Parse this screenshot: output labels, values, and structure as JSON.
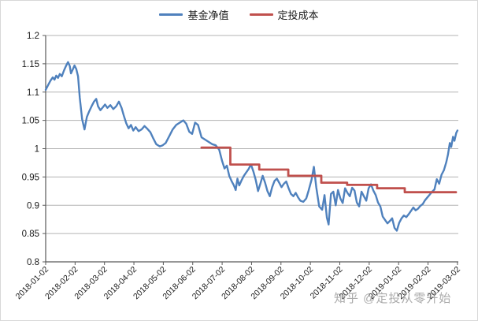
{
  "watermark": {
    "text": "知乎 @定投从零开始"
  },
  "chart_data": {
    "type": "line",
    "title": "",
    "xlabel": "",
    "ylabel": "",
    "legend_position": "top",
    "grid": "horizontal",
    "x_unit": "months since 2018-01-02",
    "xlim": [
      0,
      14.03
    ],
    "ylim": [
      0.8,
      1.2
    ],
    "y_ticks": [
      0.8,
      0.85,
      0.9,
      0.95,
      1,
      1.05,
      1.1,
      1.15,
      1.2
    ],
    "y_tick_labels": [
      "0.8",
      "0.85",
      "0.9",
      "0.95",
      "1",
      "1.05",
      "1.1",
      "1.15",
      "1.2"
    ],
    "x_tick_labels": [
      "2018-01-02",
      "2018-02-02",
      "2018-03-02",
      "2018-04-02",
      "2018-05-02",
      "2018-06-02",
      "2018-07-02",
      "2018-08-02",
      "2018-09-02",
      "2018-10-02",
      "2018-11-02",
      "2018-12-02",
      "2019-01-02",
      "2019-02-02",
      "2019-03-02"
    ],
    "colors": {
      "grid": "#b3b3b3",
      "axis": "#595959",
      "label": "#1a1a1a"
    },
    "series": [
      {
        "name": "基金净值",
        "color": "#4F81BD",
        "stroke_width": 2.4,
        "points": [
          [
            0.0,
            1.104
          ],
          [
            0.08,
            1.112
          ],
          [
            0.16,
            1.12
          ],
          [
            0.24,
            1.126
          ],
          [
            0.3,
            1.122
          ],
          [
            0.36,
            1.129
          ],
          [
            0.42,
            1.125
          ],
          [
            0.48,
            1.132
          ],
          [
            0.55,
            1.128
          ],
          [
            0.62,
            1.138
          ],
          [
            0.7,
            1.147
          ],
          [
            0.76,
            1.153
          ],
          [
            0.82,
            1.146
          ],
          [
            0.86,
            1.133
          ],
          [
            0.92,
            1.14
          ],
          [
            0.98,
            1.147
          ],
          [
            1.04,
            1.141
          ],
          [
            1.1,
            1.128
          ],
          [
            1.16,
            1.09
          ],
          [
            1.24,
            1.052
          ],
          [
            1.32,
            1.034
          ],
          [
            1.4,
            1.056
          ],
          [
            1.48,
            1.066
          ],
          [
            1.56,
            1.075
          ],
          [
            1.64,
            1.083
          ],
          [
            1.72,
            1.088
          ],
          [
            1.78,
            1.075
          ],
          [
            1.86,
            1.068
          ],
          [
            1.94,
            1.073
          ],
          [
            2.02,
            1.078
          ],
          [
            2.1,
            1.072
          ],
          [
            2.2,
            1.077
          ],
          [
            2.3,
            1.07
          ],
          [
            2.4,
            1.075
          ],
          [
            2.49,
            1.083
          ],
          [
            2.58,
            1.072
          ],
          [
            2.66,
            1.058
          ],
          [
            2.74,
            1.045
          ],
          [
            2.82,
            1.036
          ],
          [
            2.9,
            1.042
          ],
          [
            2.98,
            1.032
          ],
          [
            3.06,
            1.038
          ],
          [
            3.16,
            1.031
          ],
          [
            3.26,
            1.034
          ],
          [
            3.36,
            1.04
          ],
          [
            3.46,
            1.035
          ],
          [
            3.56,
            1.029
          ],
          [
            3.66,
            1.018
          ],
          [
            3.76,
            1.008
          ],
          [
            3.88,
            1.004
          ],
          [
            3.98,
            1.006
          ],
          [
            4.08,
            1.01
          ],
          [
            4.2,
            1.022
          ],
          [
            4.32,
            1.034
          ],
          [
            4.44,
            1.042
          ],
          [
            4.56,
            1.046
          ],
          [
            4.68,
            1.05
          ],
          [
            4.78,
            1.044
          ],
          [
            4.88,
            1.03
          ],
          [
            4.98,
            1.026
          ],
          [
            5.08,
            1.046
          ],
          [
            5.18,
            1.042
          ],
          [
            5.3,
            1.02
          ],
          [
            5.42,
            1.016
          ],
          [
            5.54,
            1.012
          ],
          [
            5.66,
            1.008
          ],
          [
            5.78,
            1.006
          ],
          [
            5.9,
            0.998
          ],
          [
            6.0,
            0.978
          ],
          [
            6.08,
            0.965
          ],
          [
            6.16,
            0.97
          ],
          [
            6.24,
            0.952
          ],
          [
            6.32,
            0.943
          ],
          [
            6.4,
            0.935
          ],
          [
            6.46,
            0.927
          ],
          [
            6.52,
            0.947
          ],
          [
            6.58,
            0.935
          ],
          [
            6.66,
            0.944
          ],
          [
            6.74,
            0.952
          ],
          [
            6.82,
            0.958
          ],
          [
            6.9,
            0.964
          ],
          [
            6.98,
            0.972
          ],
          [
            7.06,
            0.96
          ],
          [
            7.14,
            0.945
          ],
          [
            7.22,
            0.925
          ],
          [
            7.3,
            0.938
          ],
          [
            7.38,
            0.952
          ],
          [
            7.46,
            0.94
          ],
          [
            7.54,
            0.925
          ],
          [
            7.62,
            0.916
          ],
          [
            7.7,
            0.932
          ],
          [
            7.78,
            0.943
          ],
          [
            7.86,
            0.947
          ],
          [
            7.94,
            0.94
          ],
          [
            8.02,
            0.932
          ],
          [
            8.1,
            0.938
          ],
          [
            8.18,
            0.942
          ],
          [
            8.26,
            0.93
          ],
          [
            8.34,
            0.92
          ],
          [
            8.42,
            0.916
          ],
          [
            8.5,
            0.922
          ],
          [
            8.58,
            0.914
          ],
          [
            8.66,
            0.908
          ],
          [
            8.76,
            0.906
          ],
          [
            8.86,
            0.912
          ],
          [
            8.94,
            0.926
          ],
          [
            9.04,
            0.945
          ],
          [
            9.12,
            0.968
          ],
          [
            9.2,
            0.932
          ],
          [
            9.3,
            0.898
          ],
          [
            9.4,
            0.892
          ],
          [
            9.48,
            0.918
          ],
          [
            9.56,
            0.878
          ],
          [
            9.62,
            0.866
          ],
          [
            9.7,
            0.92
          ],
          [
            9.78,
            0.924
          ],
          [
            9.86,
            0.9
          ],
          [
            9.94,
            0.927
          ],
          [
            10.02,
            0.912
          ],
          [
            10.1,
            0.904
          ],
          [
            10.18,
            0.93
          ],
          [
            10.26,
            0.922
          ],
          [
            10.34,
            0.916
          ],
          [
            10.42,
            0.931
          ],
          [
            10.5,
            0.926
          ],
          [
            10.58,
            0.905
          ],
          [
            10.66,
            0.898
          ],
          [
            10.74,
            0.924
          ],
          [
            10.82,
            0.916
          ],
          [
            10.9,
            0.908
          ],
          [
            10.98,
            0.93
          ],
          [
            11.06,
            0.937
          ],
          [
            11.14,
            0.926
          ],
          [
            11.22,
            0.918
          ],
          [
            11.3,
            0.905
          ],
          [
            11.38,
            0.898
          ],
          [
            11.46,
            0.88
          ],
          [
            11.54,
            0.874
          ],
          [
            11.62,
            0.868
          ],
          [
            11.7,
            0.872
          ],
          [
            11.78,
            0.877
          ],
          [
            11.86,
            0.86
          ],
          [
            11.94,
            0.855
          ],
          [
            12.02,
            0.869
          ],
          [
            12.1,
            0.877
          ],
          [
            12.18,
            0.882
          ],
          [
            12.26,
            0.879
          ],
          [
            12.34,
            0.884
          ],
          [
            12.42,
            0.89
          ],
          [
            12.5,
            0.896
          ],
          [
            12.58,
            0.891
          ],
          [
            12.66,
            0.894
          ],
          [
            12.74,
            0.899
          ],
          [
            12.82,
            0.902
          ],
          [
            12.9,
            0.909
          ],
          [
            12.98,
            0.914
          ],
          [
            13.06,
            0.919
          ],
          [
            13.14,
            0.924
          ],
          [
            13.22,
            0.928
          ],
          [
            13.3,
            0.946
          ],
          [
            13.38,
            0.938
          ],
          [
            13.46,
            0.954
          ],
          [
            13.54,
            0.962
          ],
          [
            13.62,
            0.976
          ],
          [
            13.68,
            0.99
          ],
          [
            13.74,
            1.01
          ],
          [
            13.79,
            1.003
          ],
          [
            13.85,
            1.021
          ],
          [
            13.9,
            1.014
          ],
          [
            13.96,
            1.028
          ],
          [
            14.0,
            1.032
          ]
        ]
      },
      {
        "name": "定投成本",
        "color": "#C0504D",
        "stroke_width": 2.8,
        "points": [
          [
            5.3,
            1.002
          ],
          [
            6.28,
            1.002
          ],
          [
            6.28,
            0.972
          ],
          [
            7.26,
            0.972
          ],
          [
            7.26,
            0.963
          ],
          [
            8.25,
            0.963
          ],
          [
            8.25,
            0.952
          ],
          [
            9.37,
            0.952
          ],
          [
            9.37,
            0.94
          ],
          [
            10.25,
            0.94
          ],
          [
            10.25,
            0.936
          ],
          [
            11.27,
            0.936
          ],
          [
            11.27,
            0.93
          ],
          [
            12.21,
            0.93
          ],
          [
            12.21,
            0.923
          ],
          [
            13.95,
            0.923
          ]
        ]
      }
    ]
  }
}
